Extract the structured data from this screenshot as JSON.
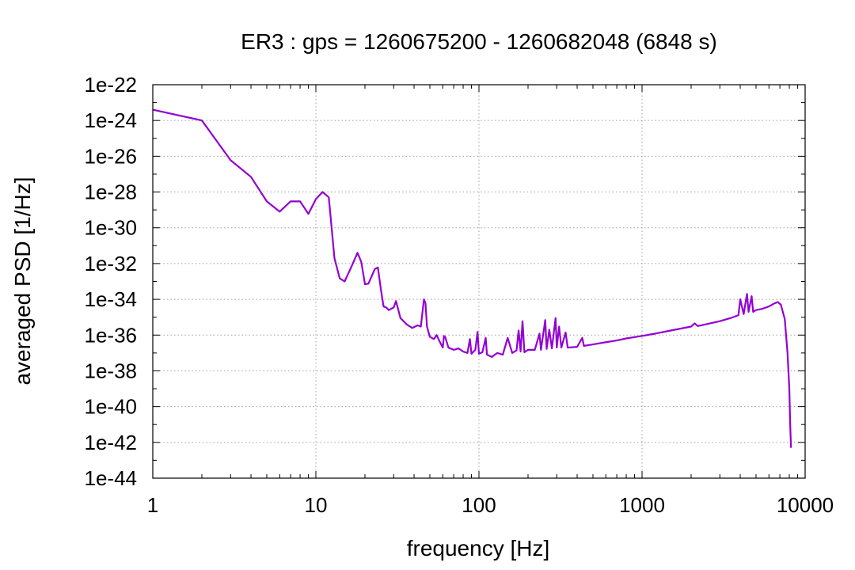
{
  "chart_data": {
    "type": "line",
    "title": "ER3 : gps = 1260675200 - 1260682048 (6848 s)",
    "xlabel": "frequency [Hz]",
    "ylabel": "averaged PSD [1/Hz]",
    "x_scale": "log",
    "y_scale": "log",
    "xlim": [
      1,
      10000
    ],
    "ylim": [
      1e-44,
      1e-22
    ],
    "grid": true,
    "x_ticks": [
      {
        "value": 1,
        "label": "1"
      },
      {
        "value": 10,
        "label": "10"
      },
      {
        "value": 100,
        "label": "100"
      },
      {
        "value": 1000,
        "label": "1000"
      },
      {
        "value": 10000,
        "label": "10000"
      }
    ],
    "y_ticks": [
      {
        "value": 1e-22,
        "label": "1e-22"
      },
      {
        "value": 1e-24,
        "label": "1e-24"
      },
      {
        "value": 1e-26,
        "label": "1e-26"
      },
      {
        "value": 1e-28,
        "label": "1e-28"
      },
      {
        "value": 1e-30,
        "label": "1e-30"
      },
      {
        "value": 1e-32,
        "label": "1e-32"
      },
      {
        "value": 1e-34,
        "label": "1e-34"
      },
      {
        "value": 1e-36,
        "label": "1e-36"
      },
      {
        "value": 1e-38,
        "label": "1e-38"
      },
      {
        "value": 1e-40,
        "label": "1e-40"
      },
      {
        "value": 1e-42,
        "label": "1e-42"
      },
      {
        "value": 1e-44,
        "label": "1e-44"
      }
    ],
    "series": [
      {
        "color": "#9400d3",
        "points": [
          [
            1,
            4e-24
          ],
          [
            2,
            1e-24
          ],
          [
            3,
            6e-27
          ],
          [
            4,
            7e-28
          ],
          [
            5,
            3e-29
          ],
          [
            6,
            8e-30
          ],
          [
            7,
            3e-29
          ],
          [
            8,
            3e-29
          ],
          [
            9,
            6e-30
          ],
          [
            10,
            4e-29
          ],
          [
            11,
            1e-28
          ],
          [
            12,
            5e-29
          ],
          [
            13,
            2e-32
          ],
          [
            14,
            1.5e-33
          ],
          [
            15,
            1e-33
          ],
          [
            16,
            3.5e-33
          ],
          [
            17,
            1.2e-32
          ],
          [
            18,
            4e-32
          ],
          [
            19,
            1.2e-32
          ],
          [
            20,
            7e-34
          ],
          [
            21,
            7.5e-34
          ],
          [
            23,
            5e-33
          ],
          [
            24,
            6e-33
          ],
          [
            25,
            4e-34
          ],
          [
            26,
            4e-35
          ],
          [
            27,
            3.5e-35
          ],
          [
            28,
            2.5e-35
          ],
          [
            30,
            3.5e-35
          ],
          [
            31,
            8e-35
          ],
          [
            33,
            9e-36
          ],
          [
            36,
            4e-36
          ],
          [
            39,
            2.5e-36
          ],
          [
            42,
            3.5e-36
          ],
          [
            44,
            3e-36
          ],
          [
            46,
            1e-34
          ],
          [
            47,
            6e-35
          ],
          [
            48,
            3e-36
          ],
          [
            50,
            8e-37
          ],
          [
            53,
            6e-37
          ],
          [
            55,
            1e-36
          ],
          [
            57,
            5e-37
          ],
          [
            60,
            2e-37
          ],
          [
            61,
            9e-37
          ],
          [
            62,
            8e-37
          ],
          [
            65,
            2e-37
          ],
          [
            70,
            1.5e-37
          ],
          [
            75,
            1.8e-37
          ],
          [
            80,
            1.2e-37
          ],
          [
            85,
            1e-37
          ],
          [
            88,
            6e-37
          ],
          [
            90,
            9e-38
          ],
          [
            95,
            1.5e-37
          ],
          [
            98,
            1.5e-36
          ],
          [
            100,
            9e-38
          ],
          [
            105,
            1.1e-37
          ],
          [
            110,
            7e-37
          ],
          [
            112,
            8e-38
          ],
          [
            120,
            6e-38
          ],
          [
            125,
            8e-38
          ],
          [
            130,
            1e-37
          ],
          [
            140,
            8e-38
          ],
          [
            150,
            7e-37
          ],
          [
            160,
            1e-37
          ],
          [
            170,
            1.4e-37
          ],
          [
            175,
            1.8e-36
          ],
          [
            180,
            1.2e-37
          ],
          [
            185,
            6e-36
          ],
          [
            190,
            1.1e-37
          ],
          [
            200,
            1.5e-37
          ],
          [
            220,
            1.5e-37
          ],
          [
            235,
            1.2e-36
          ],
          [
            240,
            1.5e-37
          ],
          [
            255,
            7e-36
          ],
          [
            260,
            1.7e-37
          ],
          [
            270,
            2e-36
          ],
          [
            280,
            1.8e-37
          ],
          [
            295,
            9e-36
          ],
          [
            300,
            2e-37
          ],
          [
            310,
            3e-36
          ],
          [
            320,
            2e-37
          ],
          [
            340,
            1.4e-36
          ],
          [
            350,
            2e-37
          ],
          [
            400,
            2.2e-37
          ],
          [
            430,
            7e-37
          ],
          [
            440,
            2.5e-37
          ],
          [
            500,
            3e-37
          ],
          [
            600,
            4e-37
          ],
          [
            700,
            5e-37
          ],
          [
            800,
            6.5e-37
          ],
          [
            1000,
            9e-37
          ],
          [
            1200,
            1.2e-36
          ],
          [
            1500,
            1.8e-36
          ],
          [
            2000,
            3e-36
          ],
          [
            2100,
            4.5e-36
          ],
          [
            2200,
            3.2e-36
          ],
          [
            3000,
            6e-36
          ],
          [
            3500,
            9e-36
          ],
          [
            3900,
            1.3e-35
          ],
          [
            4000,
            1e-34
          ],
          [
            4200,
            1.5e-35
          ],
          [
            4400,
            2e-34
          ],
          [
            4500,
            2e-35
          ],
          [
            4700,
            1.5e-34
          ],
          [
            4800,
            2e-35
          ],
          [
            5000,
            2.5e-35
          ],
          [
            5500,
            3e-35
          ],
          [
            6000,
            4e-35
          ],
          [
            6500,
            6e-35
          ],
          [
            6800,
            7e-35
          ],
          [
            7100,
            5e-35
          ],
          [
            7500,
            8e-36
          ],
          [
            7800,
            1e-37
          ],
          [
            8000,
            1e-39
          ],
          [
            8100,
            1e-41
          ],
          [
            8192,
            5e-43
          ]
        ]
      }
    ]
  }
}
